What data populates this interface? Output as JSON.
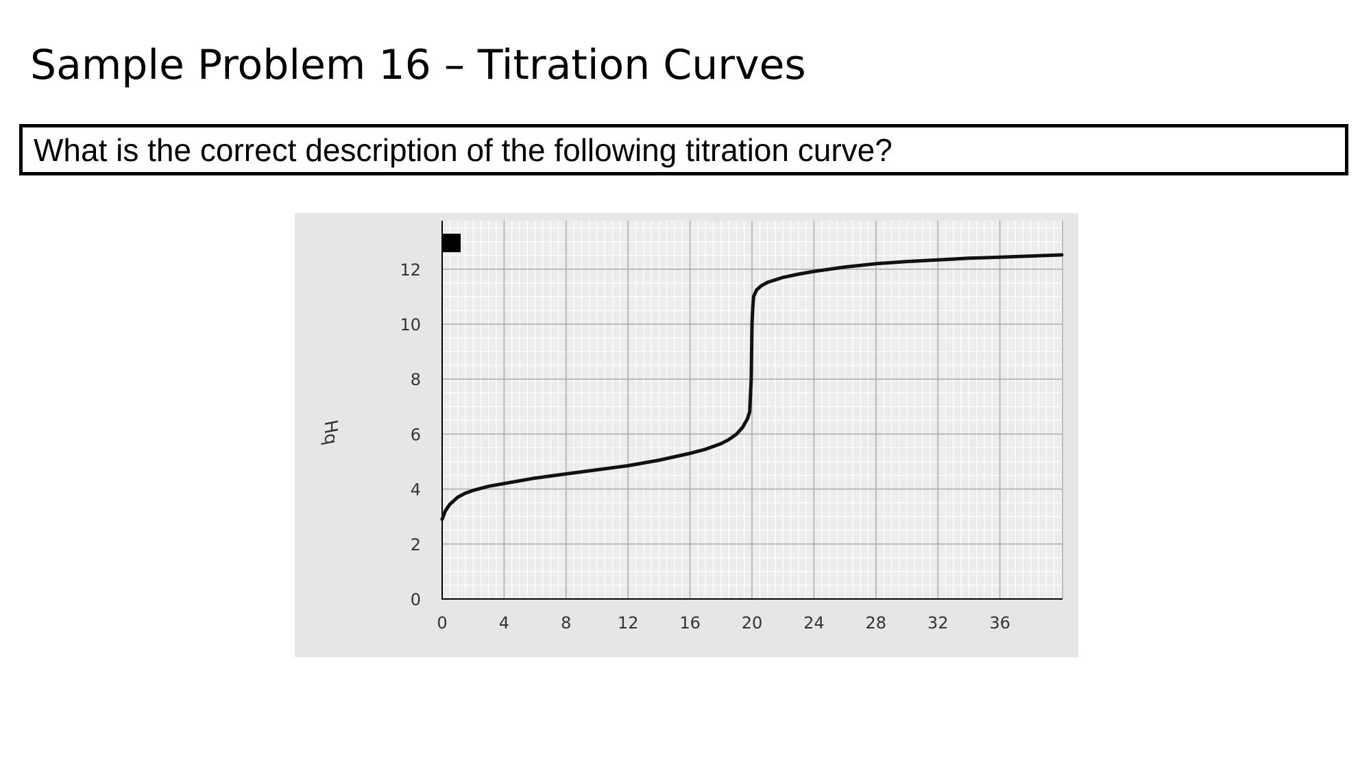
{
  "slide": {
    "title": "Sample Problem 16 –  Titration Curves",
    "question": "What is the correct description of the following titration curve?"
  },
  "chart_data": {
    "type": "line",
    "title": "",
    "xlabel": "",
    "ylabel": "pH",
    "xlim": [
      0,
      40
    ],
    "ylim": [
      0,
      14
    ],
    "x_ticks": [
      0,
      4,
      8,
      12,
      16,
      20,
      24,
      28,
      32,
      36
    ],
    "y_ticks": [
      0,
      2,
      4,
      6,
      8,
      10,
      12
    ],
    "grid": true,
    "series": [
      {
        "color": "#111111",
        "x": [
          0,
          0.2,
          0.5,
          1,
          1.5,
          2,
          3,
          4,
          6,
          8,
          10,
          12,
          14,
          16,
          17,
          18,
          18.5,
          19,
          19.4,
          19.7,
          19.85,
          19.95,
          20.0,
          20.05,
          20.1,
          20.3,
          20.6,
          21,
          22,
          23,
          24,
          26,
          28,
          30,
          32,
          34,
          36,
          38,
          40
        ],
        "y": [
          2.9,
          3.2,
          3.45,
          3.7,
          3.85,
          3.95,
          4.1,
          4.2,
          4.4,
          4.55,
          4.7,
          4.85,
          5.05,
          5.3,
          5.45,
          5.65,
          5.8,
          6.0,
          6.25,
          6.55,
          6.8,
          8.0,
          10.0,
          10.6,
          11.0,
          11.25,
          11.4,
          11.52,
          11.7,
          11.82,
          11.92,
          12.08,
          12.2,
          12.28,
          12.34,
          12.4,
          12.44,
          12.48,
          12.52
        ]
      }
    ]
  },
  "colors": {
    "panel_bg": "#e6e6e6",
    "plot_bg": "#ececec",
    "minor_grid": "#ffffff",
    "major_grid": "#a8a8a8",
    "curve": "#111111"
  }
}
